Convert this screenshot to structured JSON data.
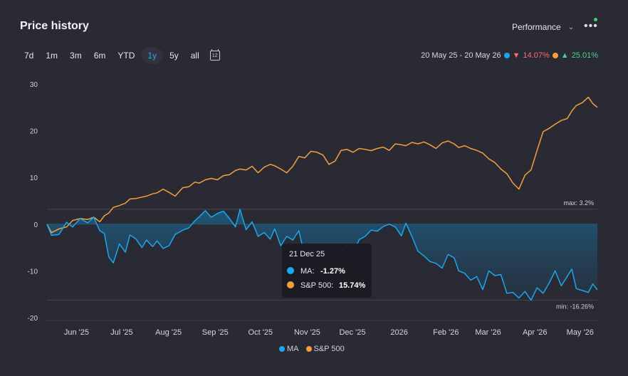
{
  "title": "Price history",
  "performance_label": "Performance",
  "more_label": "•••",
  "ranges": [
    "7d",
    "1m",
    "3m",
    "6m",
    "YTD",
    "1y",
    "5y",
    "all"
  ],
  "active_range": "1y",
  "calendar_label": "12",
  "summary": {
    "date_range": "20 May 25 - 20 May 26",
    "ma_change": "14.07%",
    "sp_change": "25.01%"
  },
  "colors": {
    "ma": "#1aa7ec",
    "sp": "#f4a03a",
    "background": "#2a2a35"
  },
  "icons": [
    "chevron-down-icon",
    "more-icon",
    "calendar-icon",
    "triangle-down-icon",
    "triangle-up-icon"
  ],
  "tooltip": {
    "date": "21 Dec 25",
    "rows": [
      {
        "label": "MA:",
        "value": "-1.27%"
      },
      {
        "label": "S&P 500:",
        "value": "15.74%"
      }
    ]
  },
  "annotations": {
    "max": "max: 3.2%",
    "min": "min: -16.26%"
  },
  "chart_data": {
    "type": "line",
    "y_ticks": [
      30,
      20,
      10,
      0,
      -10,
      -20
    ],
    "ylim": [
      -20,
      30
    ],
    "x_ticks": [
      "Jun '25",
      "Jul '25",
      "Aug '25",
      "Sep '25",
      "Oct '25",
      "Nov '25",
      "Dec '25",
      "2026",
      "Feb '26",
      "Mar '26",
      "Apr '26",
      "May '26"
    ],
    "x_start": "2025-05-20",
    "x_end": "2026-05-20",
    "legend": "bottom",
    "series": [
      {
        "name": "MA",
        "points": [
          [
            "2025-05-20",
            0
          ],
          [
            "2025-05-23",
            -2.4
          ],
          [
            "2025-05-28",
            -2.2
          ],
          [
            "2025-06-02",
            0.4
          ],
          [
            "2025-06-06",
            -0.6
          ],
          [
            "2025-06-11",
            1.2
          ],
          [
            "2025-06-16",
            0.3
          ],
          [
            "2025-06-20",
            1.5
          ],
          [
            "2025-06-24",
            -1.4
          ],
          [
            "2025-06-27",
            -2.0
          ],
          [
            "2025-06-30",
            -7.0
          ],
          [
            "2025-07-03",
            -8.3
          ],
          [
            "2025-07-07",
            -4.2
          ],
          [
            "2025-07-11",
            -6.0
          ],
          [
            "2025-07-14",
            -2.3
          ],
          [
            "2025-07-18",
            -3.2
          ],
          [
            "2025-07-22",
            -5.0
          ],
          [
            "2025-07-25",
            -3.4
          ],
          [
            "2025-07-29",
            -4.8
          ],
          [
            "2025-08-01",
            -3.6
          ],
          [
            "2025-08-05",
            -5.2
          ],
          [
            "2025-08-09",
            -4.6
          ],
          [
            "2025-08-13",
            -2.2
          ],
          [
            "2025-08-18",
            -1.3
          ],
          [
            "2025-08-22",
            -0.8
          ],
          [
            "2025-08-26",
            0.7
          ],
          [
            "2025-08-29",
            1.6
          ],
          [
            "2025-09-02",
            2.9
          ],
          [
            "2025-09-06",
            1.5
          ],
          [
            "2025-09-10",
            2.3
          ],
          [
            "2025-09-14",
            2.8
          ],
          [
            "2025-09-18",
            1.2
          ],
          [
            "2025-09-22",
            -0.6
          ],
          [
            "2025-09-25",
            3.2
          ],
          [
            "2025-09-29",
            -1.2
          ],
          [
            "2025-10-03",
            0.5
          ],
          [
            "2025-10-07",
            -2.6
          ],
          [
            "2025-10-11",
            -1.8
          ],
          [
            "2025-10-15",
            -3.2
          ],
          [
            "2025-10-18",
            -1.0
          ],
          [
            "2025-10-22",
            -4.6
          ],
          [
            "2025-10-26",
            -2.6
          ],
          [
            "2025-10-30",
            -3.4
          ],
          [
            "2025-11-03",
            -1.4
          ],
          [
            "2025-11-07",
            -6.9
          ],
          [
            "2025-11-11",
            -5.8
          ],
          [
            "2025-11-15",
            -6.0
          ],
          [
            "2025-11-19",
            -4.5
          ],
          [
            "2025-11-23",
            -7.0
          ],
          [
            "2025-11-27",
            -4.8
          ],
          [
            "2025-12-01",
            -5.8
          ],
          [
            "2025-12-05",
            -4.5
          ],
          [
            "2025-12-09",
            -6.5
          ],
          [
            "2025-12-13",
            -3.3
          ],
          [
            "2025-12-17",
            -2.6
          ],
          [
            "2025-12-21",
            -1.27
          ],
          [
            "2025-12-25",
            -1.5
          ],
          [
            "2025-12-29",
            -0.5
          ],
          [
            "2026-01-02",
            0
          ],
          [
            "2026-01-06",
            -0.6
          ],
          [
            "2026-01-10",
            -2.5
          ],
          [
            "2026-01-13",
            0.2
          ],
          [
            "2026-01-17",
            -2.6
          ],
          [
            "2026-01-21",
            -5.8
          ],
          [
            "2026-01-25",
            -6.8
          ],
          [
            "2026-01-29",
            -8.0
          ],
          [
            "2026-02-02",
            -8.4
          ],
          [
            "2026-02-06",
            -9.4
          ],
          [
            "2026-02-10",
            -6.5
          ],
          [
            "2026-02-14",
            -7.2
          ],
          [
            "2026-02-17",
            -10.0
          ],
          [
            "2026-02-21",
            -10.5
          ],
          [
            "2026-02-25",
            -12.0
          ],
          [
            "2026-03-01",
            -11.2
          ],
          [
            "2026-03-05",
            -14.0
          ],
          [
            "2026-03-09",
            -10.0
          ],
          [
            "2026-03-13",
            -11.0
          ],
          [
            "2026-03-17",
            -10.8
          ],
          [
            "2026-03-21",
            -14.8
          ],
          [
            "2026-03-25",
            -14.6
          ],
          [
            "2026-03-29",
            -15.8
          ],
          [
            "2026-04-02",
            -14.4
          ],
          [
            "2026-04-06",
            -16.26
          ],
          [
            "2026-04-10",
            -13.6
          ],
          [
            "2026-04-14",
            -14.8
          ],
          [
            "2026-04-18",
            -12.6
          ],
          [
            "2026-04-22",
            -10.0
          ],
          [
            "2026-04-26",
            -13.2
          ],
          [
            "2026-04-30",
            -11.2
          ],
          [
            "2026-05-03",
            -9.6
          ],
          [
            "2026-05-06",
            -13.8
          ],
          [
            "2026-05-10",
            -14.2
          ],
          [
            "2026-05-14",
            -14.6
          ],
          [
            "2026-05-17",
            -12.8
          ],
          [
            "2026-05-20",
            -14.07
          ]
        ]
      },
      {
        "name": "S&P 500",
        "points": [
          [
            "2025-05-20",
            0
          ],
          [
            "2025-05-23",
            -1.8
          ],
          [
            "2025-05-28",
            -1.0
          ],
          [
            "2025-06-02",
            -0.6
          ],
          [
            "2025-06-06",
            0.8
          ],
          [
            "2025-06-11",
            1.2
          ],
          [
            "2025-06-16",
            1.0
          ],
          [
            "2025-06-20",
            1.5
          ],
          [
            "2025-06-24",
            0.5
          ],
          [
            "2025-06-27",
            1.8
          ],
          [
            "2025-06-30",
            2.4
          ],
          [
            "2025-07-03",
            3.6
          ],
          [
            "2025-07-07",
            4.0
          ],
          [
            "2025-07-11",
            4.5
          ],
          [
            "2025-07-14",
            5.4
          ],
          [
            "2025-07-18",
            5.5
          ],
          [
            "2025-07-22",
            5.8
          ],
          [
            "2025-07-25",
            6.0
          ],
          [
            "2025-07-29",
            6.5
          ],
          [
            "2025-08-01",
            6.7
          ],
          [
            "2025-08-05",
            7.5
          ],
          [
            "2025-08-09",
            6.8
          ],
          [
            "2025-08-13",
            6.0
          ],
          [
            "2025-08-18",
            7.8
          ],
          [
            "2025-08-22",
            8.0
          ],
          [
            "2025-08-26",
            9.0
          ],
          [
            "2025-08-29",
            8.8
          ],
          [
            "2025-09-02",
            9.5
          ],
          [
            "2025-09-06",
            9.8
          ],
          [
            "2025-09-10",
            9.5
          ],
          [
            "2025-09-14",
            10.4
          ],
          [
            "2025-09-18",
            10.6
          ],
          [
            "2025-09-22",
            11.5
          ],
          [
            "2025-09-25",
            11.8
          ],
          [
            "2025-09-29",
            11.6
          ],
          [
            "2025-10-03",
            12.4
          ],
          [
            "2025-10-07",
            11.0
          ],
          [
            "2025-10-11",
            12.2
          ],
          [
            "2025-10-15",
            12.8
          ],
          [
            "2025-10-18",
            12.5
          ],
          [
            "2025-10-22",
            11.8
          ],
          [
            "2025-10-26",
            11.0
          ],
          [
            "2025-10-30",
            12.4
          ],
          [
            "2025-11-03",
            14.5
          ],
          [
            "2025-11-07",
            14.2
          ],
          [
            "2025-11-11",
            15.6
          ],
          [
            "2025-11-15",
            15.4
          ],
          [
            "2025-11-19",
            14.8
          ],
          [
            "2025-11-23",
            12.8
          ],
          [
            "2025-11-27",
            13.5
          ],
          [
            "2025-12-01",
            15.8
          ],
          [
            "2025-12-05",
            16.0
          ],
          [
            "2025-12-09",
            15.4
          ],
          [
            "2025-12-13",
            16.2
          ],
          [
            "2025-12-17",
            16.0
          ],
          [
            "2025-12-21",
            15.74
          ],
          [
            "2025-12-25",
            16.2
          ],
          [
            "2025-12-29",
            16.5
          ],
          [
            "2026-01-02",
            15.8
          ],
          [
            "2026-01-06",
            17.2
          ],
          [
            "2026-01-10",
            17.0
          ],
          [
            "2026-01-13",
            16.8
          ],
          [
            "2026-01-17",
            17.5
          ],
          [
            "2026-01-21",
            17.2
          ],
          [
            "2026-01-25",
            17.6
          ],
          [
            "2026-01-29",
            17.0
          ],
          [
            "2026-02-02",
            16.2
          ],
          [
            "2026-02-06",
            17.4
          ],
          [
            "2026-02-10",
            17.8
          ],
          [
            "2026-02-14",
            17.2
          ],
          [
            "2026-02-17",
            16.4
          ],
          [
            "2026-02-21",
            16.8
          ],
          [
            "2026-02-25",
            16.2
          ],
          [
            "2026-03-01",
            15.8
          ],
          [
            "2026-03-05",
            15.2
          ],
          [
            "2026-03-09",
            14.0
          ],
          [
            "2026-03-13",
            13.2
          ],
          [
            "2026-03-17",
            11.8
          ],
          [
            "2026-03-21",
            10.8
          ],
          [
            "2026-03-25",
            8.8
          ],
          [
            "2026-03-29",
            7.5
          ],
          [
            "2026-04-02",
            10.5
          ],
          [
            "2026-04-06",
            11.6
          ],
          [
            "2026-04-10",
            15.8
          ],
          [
            "2026-04-14",
            19.8
          ],
          [
            "2026-04-18",
            20.5
          ],
          [
            "2026-04-22",
            21.4
          ],
          [
            "2026-04-26",
            22.2
          ],
          [
            "2026-04-30",
            22.6
          ],
          [
            "2026-05-03",
            24.2
          ],
          [
            "2026-05-06",
            25.4
          ],
          [
            "2026-05-10",
            26.0
          ],
          [
            "2026-05-14",
            27.2
          ],
          [
            "2026-05-17",
            25.8
          ],
          [
            "2026-05-20",
            25.01
          ]
        ]
      }
    ]
  }
}
